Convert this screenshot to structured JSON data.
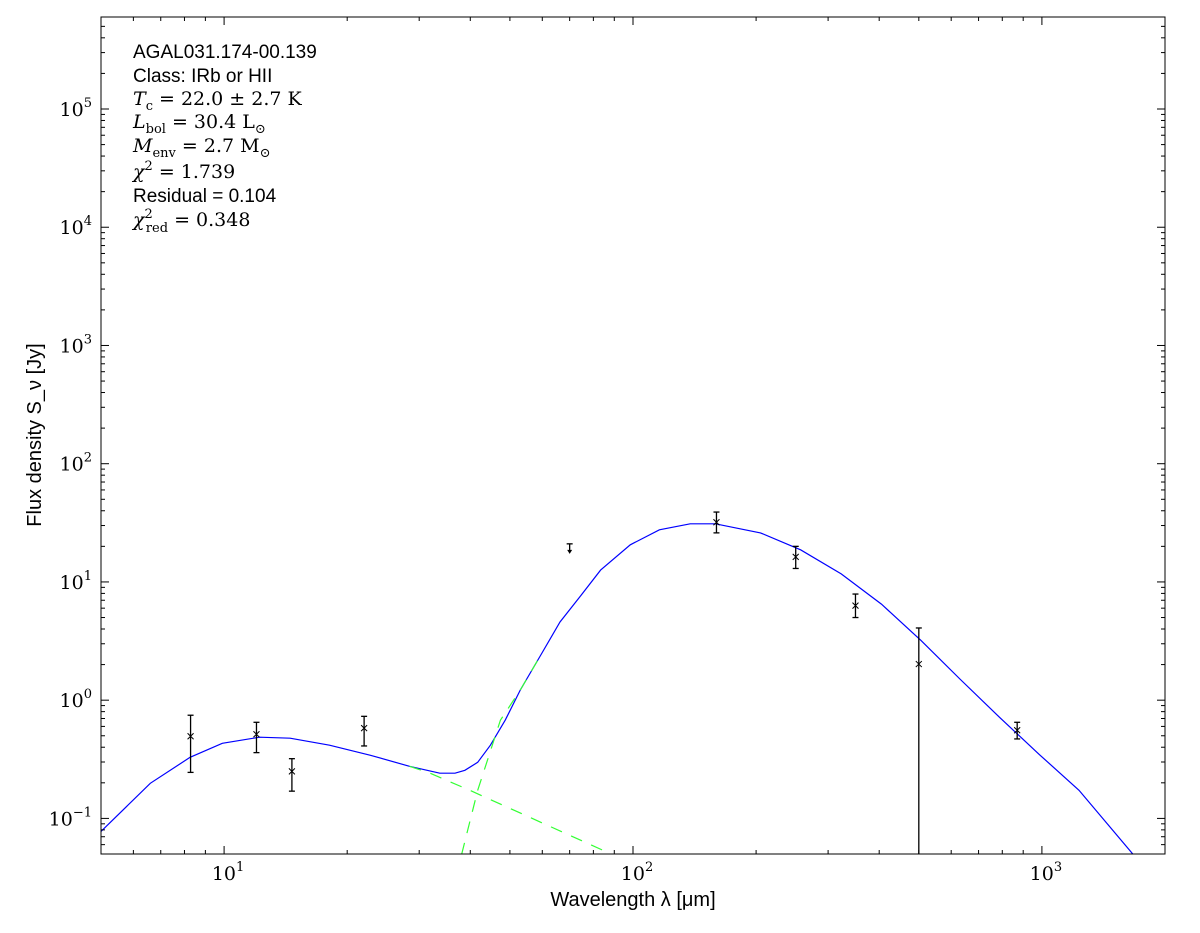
{
  "chart_data": {
    "type": "scatter",
    "xlabel": "Wavelength λ [μm]",
    "ylabel": "Flux density S_ν [Jy]",
    "xscale": "log",
    "yscale": "log",
    "xlim": [
      5,
      2000
    ],
    "ylim": [
      0.05,
      600000
    ],
    "grid": false,
    "x_tick_labels": [
      {
        "base": "10",
        "exp": "1",
        "value": 10
      },
      {
        "base": "10",
        "exp": "2",
        "value": 100
      },
      {
        "base": "10",
        "exp": "3",
        "value": 1000
      }
    ],
    "y_tick_labels": [
      {
        "base": "10",
        "exp": "−1",
        "value": 0.1
      },
      {
        "base": "10",
        "exp": "0",
        "value": 1
      },
      {
        "base": "10",
        "exp": "1",
        "value": 10
      },
      {
        "base": "10",
        "exp": "2",
        "value": 100
      },
      {
        "base": "10",
        "exp": "3",
        "value": 1000
      },
      {
        "base": "10",
        "exp": "4",
        "value": 10000
      },
      {
        "base": "10",
        "exp": "5",
        "value": 100000
      }
    ],
    "annotations": [
      {
        "style": "sans",
        "text": "AGAL031.174-00.139"
      },
      {
        "style": "sans",
        "text": "Class: IRb or HII"
      },
      {
        "style": "math",
        "sym": "T",
        "sub": "c",
        "text": " = 22.0 ± 2.7 K"
      },
      {
        "style": "math",
        "sym": "L",
        "sub": "bol",
        "text": " = 30.4 L",
        "suffix_sub": "⊙"
      },
      {
        "style": "math",
        "sym": "M",
        "sub": "env",
        "text": " = 2.7 M",
        "suffix_sub": "⊙"
      },
      {
        "style": "math",
        "sym": "χ",
        "sup": "2",
        "text": " = 1.739"
      },
      {
        "style": "sans",
        "text": "Residual = 0.104"
      },
      {
        "style": "math",
        "sym": "χ",
        "sup": "2",
        "sub": "red",
        "text": " = 0.348"
      }
    ],
    "colors": {
      "model_total": "#0000ff",
      "model_components": "#33ff33",
      "data": "#000000"
    },
    "data_points": [
      {
        "x": 8.28,
        "y": 0.495,
        "ylow": 0.245,
        "yhigh": 0.746
      },
      {
        "x": 12.0,
        "y": 0.515,
        "ylow": 0.36,
        "yhigh": 0.65
      },
      {
        "x": 14.65,
        "y": 0.25,
        "ylow": 0.17,
        "yhigh": 0.32
      },
      {
        "x": 22.0,
        "y": 0.58,
        "ylow": 0.41,
        "yhigh": 0.73
      },
      {
        "x": 160,
        "y": 32,
        "ylow": 26,
        "yhigh": 39
      },
      {
        "x": 250,
        "y": 16.3,
        "ylow": 13,
        "yhigh": 20
      },
      {
        "x": 350,
        "y": 6.3,
        "ylow": 5.0,
        "yhigh": 7.9
      },
      {
        "x": 500,
        "y": 2.02,
        "ylow": 0,
        "yhigh": 4.08
      },
      {
        "x": 870,
        "y": 0.557,
        "ylow": 0.47,
        "yhigh": 0.65
      }
    ],
    "upper_limits": [
      {
        "x": 70,
        "y": 21
      }
    ],
    "series": [
      {
        "style": "solid",
        "x": [
          5.0,
          6.6,
          8.26,
          9.9,
          12.2,
          14.5,
          18.1,
          22.8,
          28.4,
          33.7,
          36.7,
          38.8,
          41.7,
          44.8,
          48.7,
          53.0,
          59.5,
          66.3,
          74.4,
          83.3,
          98.5,
          116,
          138,
          159,
          205,
          257,
          323,
          405,
          505,
          630,
          787,
          985,
          1232,
          1672
        ],
        "y": [
          0.0775,
          0.198,
          0.329,
          0.432,
          0.486,
          0.477,
          0.416,
          0.342,
          0.276,
          0.241,
          0.241,
          0.255,
          0.298,
          0.416,
          0.677,
          1.22,
          2.41,
          4.58,
          7.6,
          12.6,
          20.6,
          27.6,
          31,
          31,
          26,
          18.7,
          11.7,
          6.5,
          3.22,
          1.51,
          0.718,
          0.348,
          0.173,
          0.0495
        ]
      },
      {
        "style": "dashed",
        "x": [
          28.4,
          31.9,
          39.9,
          89
        ],
        "y": [
          0.276,
          0.241,
          0.173,
          0.0495
        ]
      },
      {
        "style": "dashed",
        "x": [
          38.1,
          41.7,
          47.4,
          53.0,
          59.5
        ],
        "y": [
          0.0495,
          0.173,
          0.677,
          1.22,
          2.41
        ]
      }
    ]
  }
}
